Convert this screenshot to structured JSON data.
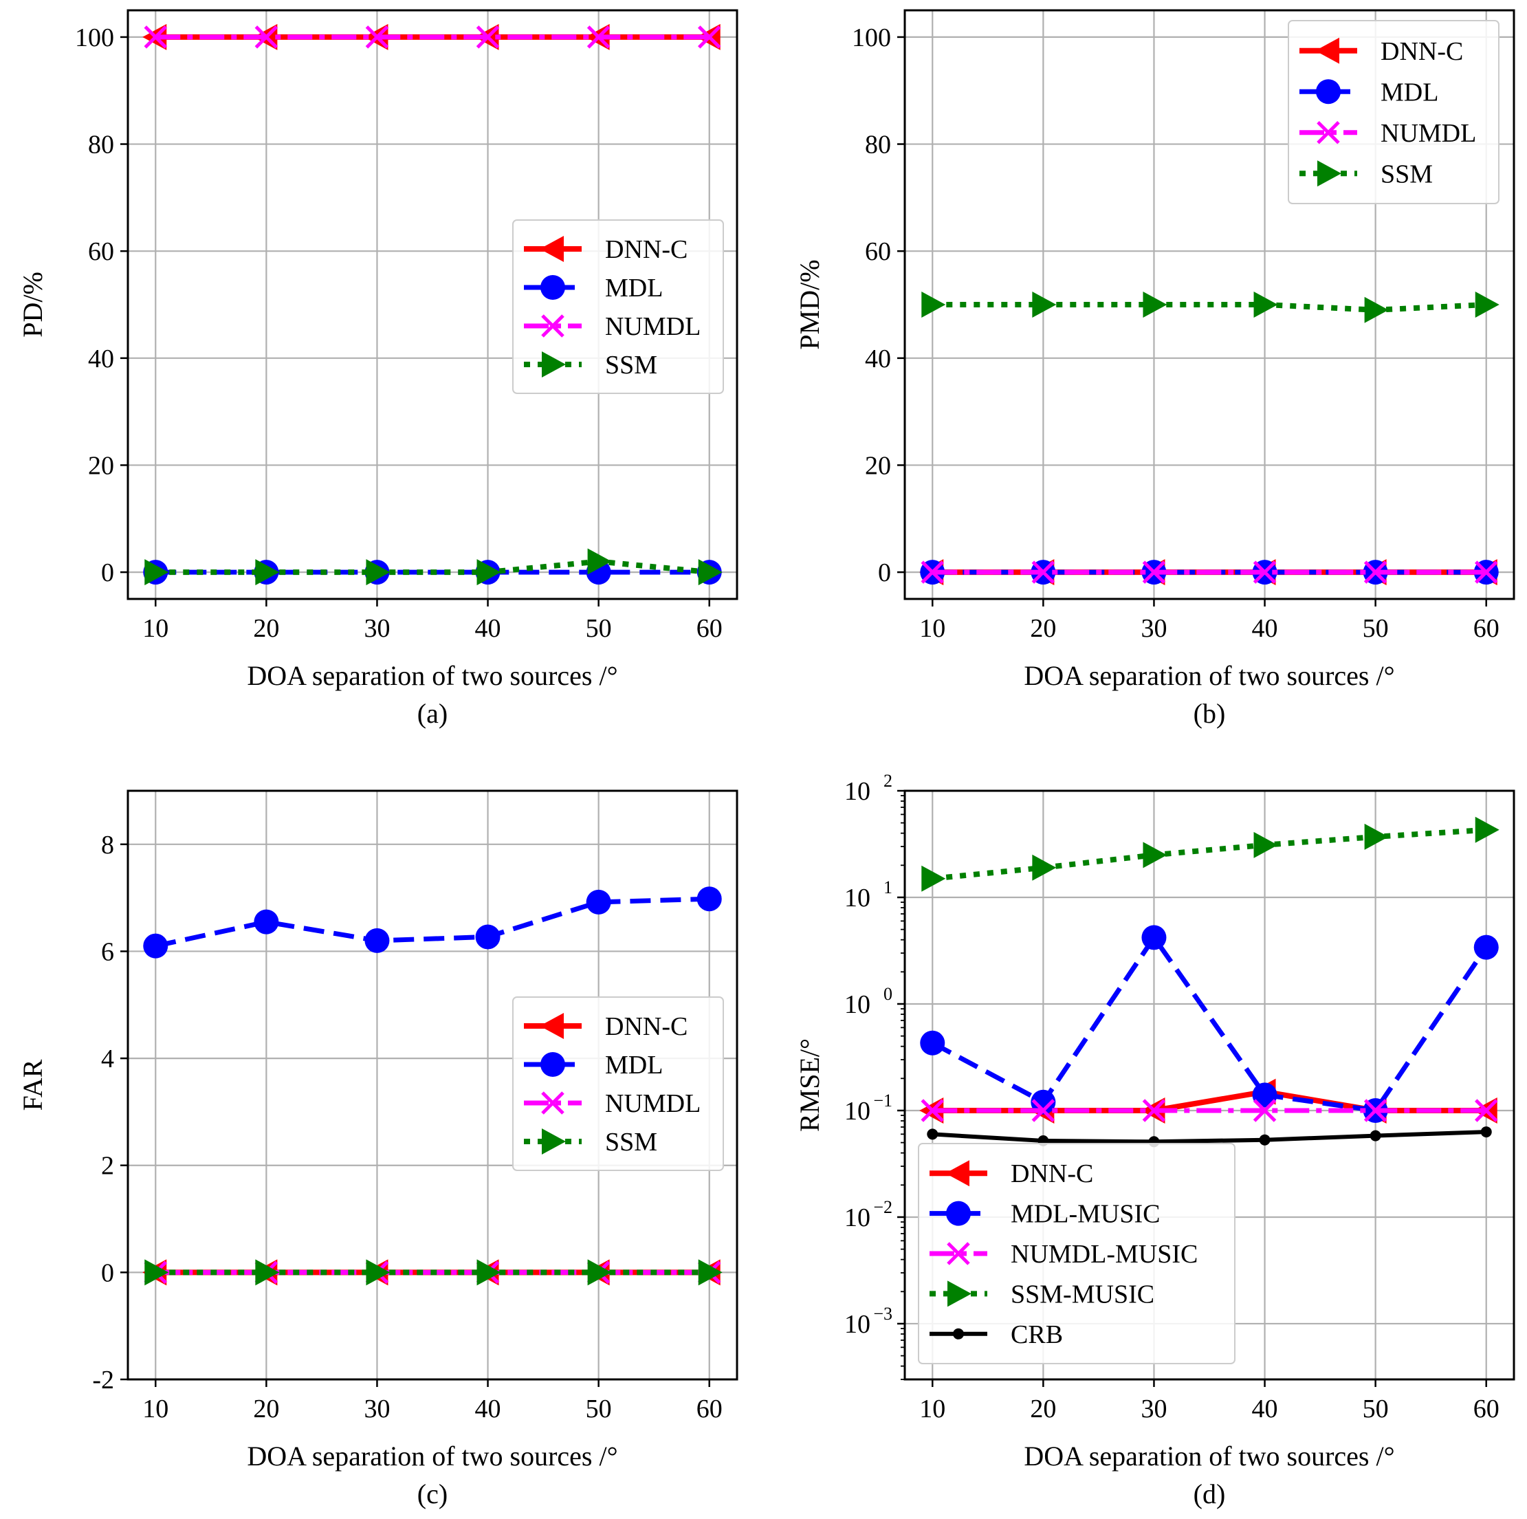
{
  "chart_data": [
    {
      "panel": "a",
      "type": "line",
      "caption": "(a)",
      "xlabel": "DOA separation of two sources /°",
      "ylabel": "PD/%",
      "xlim": [
        7.5,
        62.5
      ],
      "ylim": [
        -5,
        105
      ],
      "yscale": "linear",
      "x": [
        10,
        20,
        30,
        40,
        50,
        60
      ],
      "xticks": [
        "10",
        "20",
        "30",
        "40",
        "50",
        "60"
      ],
      "yticks": [
        {
          "v": 0,
          "label": "0"
        },
        {
          "v": 20,
          "label": "20"
        },
        {
          "v": 40,
          "label": "40"
        },
        {
          "v": 60,
          "label": "60"
        },
        {
          "v": 80,
          "label": "80"
        },
        {
          "v": 100,
          "label": "100"
        }
      ],
      "grid": true,
      "legend_position": "center-right",
      "series": [
        {
          "name": "DNN-C",
          "style": "dnn",
          "values": [
            100,
            100,
            100,
            100,
            100,
            100
          ]
        },
        {
          "name": "MDL",
          "style": "mdl",
          "values": [
            0,
            0,
            0,
            0,
            0,
            0
          ]
        },
        {
          "name": "NUMDL",
          "style": "numdl",
          "values": [
            100,
            100,
            100,
            100,
            100,
            100
          ]
        },
        {
          "name": "SSM",
          "style": "ssm",
          "values": [
            0,
            0,
            0,
            0,
            2,
            0
          ]
        }
      ]
    },
    {
      "panel": "b",
      "type": "line",
      "caption": "(b)",
      "xlabel": "DOA separation of two sources /°",
      "ylabel": "PMD/%",
      "xlim": [
        7.5,
        62.5
      ],
      "ylim": [
        -5,
        105
      ],
      "yscale": "linear",
      "x": [
        10,
        20,
        30,
        40,
        50,
        60
      ],
      "xticks": [
        "10",
        "20",
        "30",
        "40",
        "50",
        "60"
      ],
      "yticks": [
        {
          "v": 0,
          "label": "0"
        },
        {
          "v": 20,
          "label": "20"
        },
        {
          "v": 40,
          "label": "40"
        },
        {
          "v": 60,
          "label": "60"
        },
        {
          "v": 80,
          "label": "80"
        },
        {
          "v": 100,
          "label": "100"
        }
      ],
      "grid": true,
      "legend_position": "top-right",
      "series": [
        {
          "name": "DNN-C",
          "style": "dnn",
          "values": [
            0,
            0,
            0,
            0,
            0,
            0
          ]
        },
        {
          "name": "MDL",
          "style": "mdl",
          "values": [
            0,
            0,
            0,
            0,
            0,
            0
          ]
        },
        {
          "name": "NUMDL",
          "style": "numdl",
          "values": [
            0,
            0,
            0,
            0,
            0,
            0
          ]
        },
        {
          "name": "SSM",
          "style": "ssm",
          "values": [
            50,
            50,
            50,
            50,
            49,
            50
          ]
        }
      ]
    },
    {
      "panel": "c",
      "type": "line",
      "caption": "(c)",
      "xlabel": "DOA separation of two sources /°",
      "ylabel": "FAR",
      "xlim": [
        7.5,
        62.5
      ],
      "ylim": [
        -2,
        9
      ],
      "yscale": "linear",
      "x": [
        10,
        20,
        30,
        40,
        50,
        60
      ],
      "xticks": [
        "10",
        "20",
        "30",
        "40",
        "50",
        "60"
      ],
      "yticks": [
        {
          "v": -2,
          "label": "-2"
        },
        {
          "v": 0,
          "label": "0"
        },
        {
          "v": 2,
          "label": "2"
        },
        {
          "v": 4,
          "label": "4"
        },
        {
          "v": 6,
          "label": "6"
        },
        {
          "v": 8,
          "label": "8"
        }
      ],
      "grid": true,
      "legend_position": "center-right",
      "series": [
        {
          "name": "DNN-C",
          "style": "dnn",
          "values": [
            0,
            0,
            0,
            0,
            0,
            0
          ]
        },
        {
          "name": "MDL",
          "style": "mdl",
          "values": [
            6.1,
            6.55,
            6.2,
            6.27,
            6.92,
            6.98
          ]
        },
        {
          "name": "NUMDL",
          "style": "numdl",
          "values": [
            0,
            0,
            0,
            0,
            0,
            0
          ]
        },
        {
          "name": "SSM",
          "style": "ssm",
          "values": [
            0,
            0,
            0,
            0,
            0,
            0
          ]
        }
      ]
    },
    {
      "panel": "d",
      "type": "line",
      "caption": "(d)",
      "xlabel": "DOA separation of two sources /°",
      "ylabel": "RMSE/°",
      "xlim": [
        7.5,
        62.5
      ],
      "ylim": [
        0.0003,
        100
      ],
      "yscale": "log",
      "x": [
        10,
        20,
        30,
        40,
        50,
        60
      ],
      "xticks": [
        "10",
        "20",
        "30",
        "40",
        "50",
        "60"
      ],
      "yticks": [
        {
          "v": 0.001,
          "base": "10",
          "exp": "−3"
        },
        {
          "v": 0.01,
          "base": "10",
          "exp": "−2"
        },
        {
          "v": 0.1,
          "base": "10",
          "exp": "−1"
        },
        {
          "v": 1,
          "base": "10",
          "exp": "0"
        },
        {
          "v": 10,
          "base": "10",
          "exp": "1"
        },
        {
          "v": 100,
          "base": "10",
          "exp": "2"
        }
      ],
      "grid": true,
      "legend_position": "lower-left",
      "series": [
        {
          "name": "DNN-C",
          "style": "dnn",
          "values": [
            0.1,
            0.1,
            0.1,
            0.15,
            0.1,
            0.1
          ]
        },
        {
          "name": "MDL-MUSIC",
          "style": "mdl",
          "values": [
            0.43,
            0.12,
            4.2,
            0.14,
            0.1,
            3.4
          ]
        },
        {
          "name": "NUMDL-MUSIC",
          "style": "numdl",
          "values": [
            0.1,
            0.1,
            0.1,
            0.1,
            0.1,
            0.1
          ]
        },
        {
          "name": "SSM-MUSIC",
          "style": "ssm",
          "values": [
            15,
            19,
            25,
            31,
            37,
            43
          ]
        },
        {
          "name": "CRB",
          "style": "crb",
          "values": [
            0.06,
            0.052,
            0.051,
            0.053,
            0.058,
            0.063
          ]
        }
      ]
    }
  ],
  "colors": {
    "dnn": "#ff0000",
    "mdl": "#0000ff",
    "numdl": "#ff00ff",
    "ssm": "#008000",
    "crb": "#000000",
    "grid": "#b0b0b0",
    "axes": "#000000"
  }
}
